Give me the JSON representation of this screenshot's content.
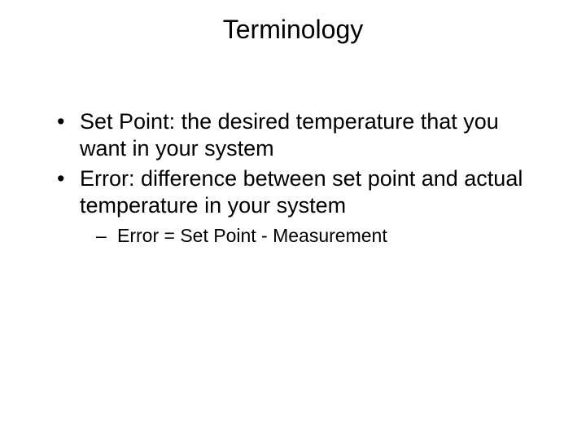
{
  "slide": {
    "title": "Terminology",
    "bullets": [
      {
        "text": "Set Point: the desired temperature that you want in your system"
      },
      {
        "text": "Error: difference between set point and actual temperature in your system",
        "sub": [
          "Error = Set Point - Measurement"
        ]
      }
    ]
  },
  "styling": {
    "background_color": "#ffffff",
    "text_color": "#000000",
    "title_fontsize": 32,
    "bullet_fontsize": 27,
    "sub_fontsize": 23,
    "font_family": "Arial"
  }
}
